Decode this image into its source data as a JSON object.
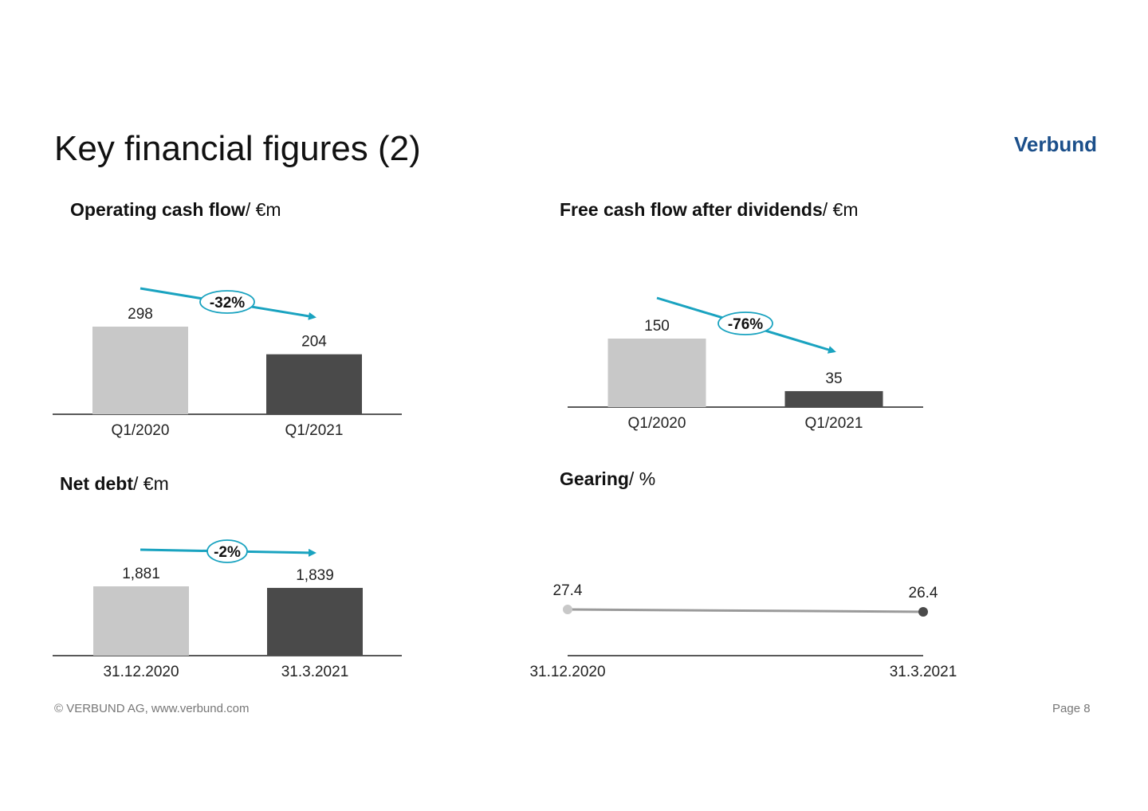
{
  "slide": {
    "title": "Key financial figures (2)",
    "logo_text": "Verbund",
    "footer_left": "© VERBUND AG, www.verbund.com",
    "footer_right": "Page 8"
  },
  "colors": {
    "bar_previous": "#c8c8c8",
    "bar_current": "#4a4a4a",
    "accent_arrow": "#1aa3c0",
    "line": "#9a9a9a",
    "logo": "#1b4f8a"
  },
  "headings": {
    "ocf_bold": "Operating cash flow",
    "ocf_unit": "/ €m",
    "fcf_bold": "Free cash flow after dividends",
    "fcf_unit": "/ €m",
    "nd_bold": "Net debt",
    "nd_unit": "/ €m",
    "gr_bold": "Gearing",
    "gr_unit": "/ %"
  },
  "chart_data": [
    {
      "id": "ocf",
      "type": "bar",
      "title": "Operating cash flow/ €m",
      "categories": [
        "Q1/2020",
        "Q1/2021"
      ],
      "values": [
        298,
        204
      ],
      "value_labels": [
        "298",
        "204"
      ],
      "change_label": "-32%",
      "grid": false
    },
    {
      "id": "fcf",
      "type": "bar",
      "title": "Free cash flow after dividends/ €m",
      "categories": [
        "Q1/2020",
        "Q1/2021"
      ],
      "values": [
        150,
        35
      ],
      "value_labels": [
        "150",
        "35"
      ],
      "change_label": "-76%",
      "grid": false
    },
    {
      "id": "nd",
      "type": "bar",
      "title": "Net debt/ €m",
      "categories": [
        "31.12.2020",
        "31.3.2021"
      ],
      "values": [
        1881,
        1839
      ],
      "value_labels": [
        "1,881",
        "1,839"
      ],
      "change_label": "-2%",
      "grid": false
    },
    {
      "id": "gr",
      "type": "line",
      "title": "Gearing/ %",
      "categories": [
        "31.12.2020",
        "31.3.2021"
      ],
      "values": [
        27.4,
        26.4
      ],
      "value_labels": [
        "27.4",
        "26.4"
      ],
      "grid": false
    }
  ]
}
